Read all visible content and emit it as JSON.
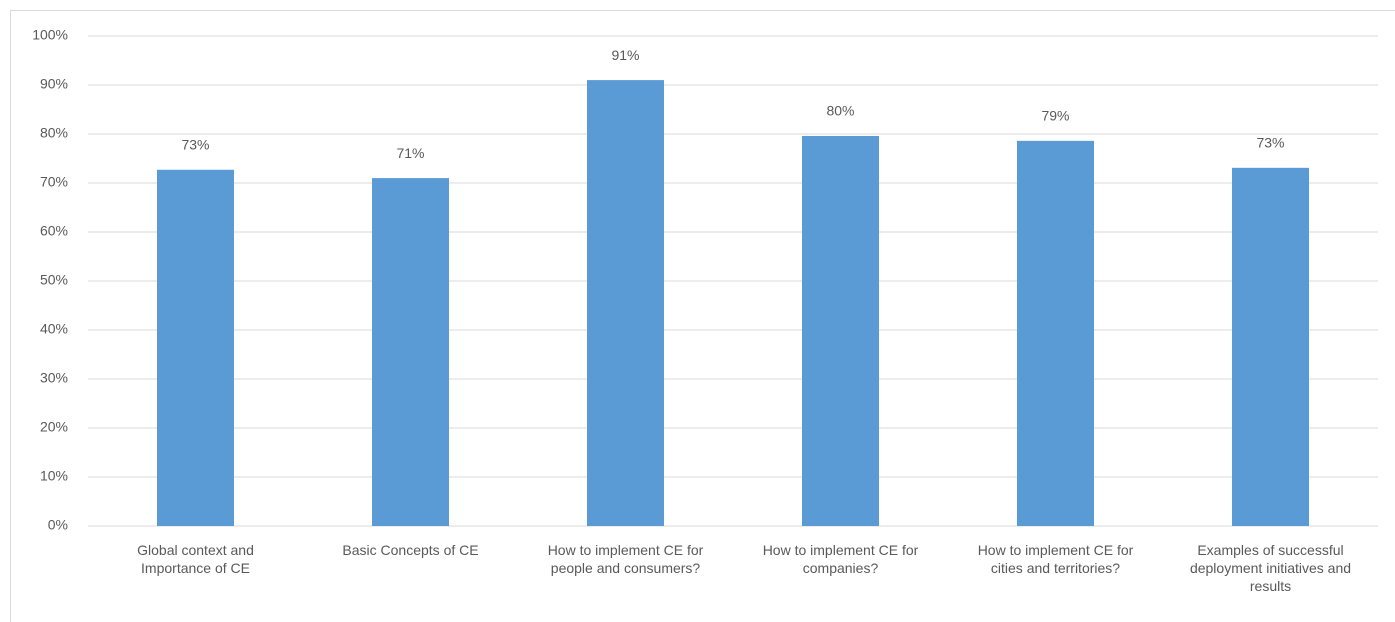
{
  "chart_data": {
    "type": "bar",
    "categories": [
      "Global context and Importance of CE",
      "Basic Concepts of CE",
      "How to implement CE for people and consumers?",
      "How to implement CE for companies?",
      "How to implement CE for cities and territories?",
      "Examples of successful deployment initiatives and results"
    ],
    "values": [
      72.7,
      71,
      91,
      79.6,
      78.6,
      73.1
    ],
    "value_labels": [
      "73%",
      "71%",
      "91%",
      "80%",
      "79%",
      "73%"
    ],
    "color": "#5b9bd5",
    "ylim": [
      0,
      100
    ],
    "yticks": [
      {
        "value": 0,
        "label": "0%"
      },
      {
        "value": 10,
        "label": "10%"
      },
      {
        "value": 20,
        "label": "20%"
      },
      {
        "value": 30,
        "label": "30%"
      },
      {
        "value": 40,
        "label": "40%"
      },
      {
        "value": 50,
        "label": "50%"
      },
      {
        "value": 60,
        "label": "60%"
      },
      {
        "value": 70,
        "label": "70%"
      },
      {
        "value": 80,
        "label": "80%"
      },
      {
        "value": 90,
        "label": "90%"
      },
      {
        "value": 100,
        "label": "100%"
      }
    ],
    "grid": true
  }
}
